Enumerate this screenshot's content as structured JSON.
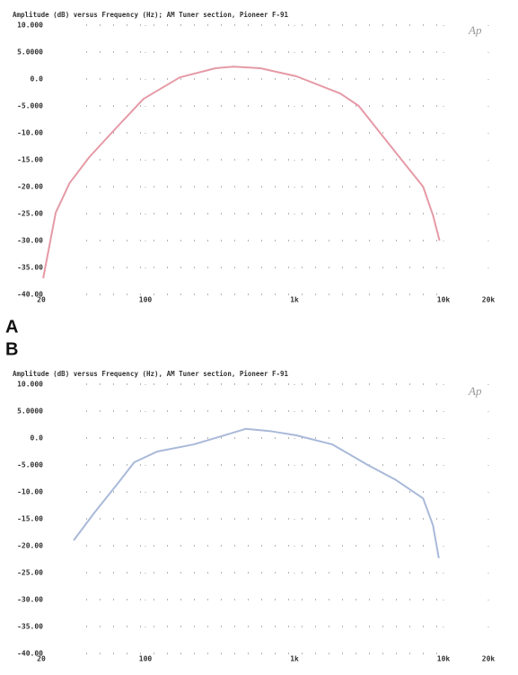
{
  "chart_data": [
    {
      "type": "line",
      "panel_label": "A",
      "logo": "Ap",
      "title": "Amplitude (dB) versus Frequency (Hz); AM Tuner section, Pioneer F-91",
      "xscale": "log",
      "grid": "dotted",
      "xlim": [
        20,
        20000
      ],
      "xticks": [
        20,
        100,
        {
          "value": 1000,
          "label": "1k"
        },
        {
          "value": 10000,
          "label": "10k"
        },
        {
          "value": 20000,
          "label": "20k"
        }
      ],
      "ylim": [
        -40,
        10
      ],
      "yticks": [
        {
          "value": 10,
          "label": "10.000"
        },
        {
          "value": 5,
          "label": "5.0000"
        },
        {
          "value": 0,
          "label": "0.0"
        },
        {
          "value": -5,
          "label": "-5.000"
        },
        {
          "value": -10,
          "label": "-10.00"
        },
        {
          "value": -15,
          "label": "-15.00"
        },
        {
          "value": -20,
          "label": "-20.00"
        },
        {
          "value": -25,
          "label": "-25.00"
        },
        {
          "value": -30,
          "label": "-30.00"
        },
        {
          "value": -35,
          "label": "-35.00"
        },
        {
          "value": -40,
          "label": "-40.00"
        }
      ],
      "x": [
        20.6,
        25,
        31,
        42,
        64,
        97,
        170,
        295,
        390,
        590,
        1030,
        2030,
        2700,
        4800,
        7300,
        8500,
        9400
      ],
      "series": [
        {
          "color": "#e59aa6",
          "values": [
            -37,
            -24.8,
            -19.3,
            -14.5,
            -9,
            -3.7,
            0.3,
            2,
            2.3,
            2,
            0.5,
            -2.7,
            -5,
            -13.7,
            -20,
            -25.3,
            -30
          ]
        }
      ]
    },
    {
      "type": "line",
      "panel_label": "B",
      "logo": "Ap",
      "title": "Amplitude (dB) versus Frequency (Hz), AM Tuner section, Pioneer F-91",
      "xscale": "log",
      "grid": "dotted",
      "xlim": [
        20,
        20000
      ],
      "xticks": [
        20,
        100,
        {
          "value": 1000,
          "label": "1k"
        },
        {
          "value": 10000,
          "label": "10k"
        },
        {
          "value": 20000,
          "label": "20k"
        }
      ],
      "ylim": [
        -40,
        10
      ],
      "yticks": [
        {
          "value": 10,
          "label": "10.000"
        },
        {
          "value": 5,
          "label": "5.0000"
        },
        {
          "value": 0,
          "label": "0.0"
        },
        {
          "value": -5,
          "label": "-5.000"
        },
        {
          "value": -10,
          "label": "-10.00"
        },
        {
          "value": -15,
          "label": "-15.00"
        },
        {
          "value": -20,
          "label": "-20.00"
        },
        {
          "value": -25,
          "label": "-25.00"
        },
        {
          "value": -30,
          "label": "-30.00"
        },
        {
          "value": -35,
          "label": "-35.00"
        },
        {
          "value": -40,
          "label": "-40.00"
        }
      ],
      "x": [
        33,
        45,
        64,
        84,
        120,
        210,
        320,
        470,
        680,
        1030,
        1800,
        3100,
        4800,
        7300,
        8500,
        9300
      ],
      "series": [
        {
          "color": "#a9b9d9",
          "values": [
            -19,
            -14,
            -8.7,
            -4.5,
            -2.5,
            -1.2,
            0.3,
            1.7,
            1.3,
            0.5,
            -1.2,
            -5,
            -7.8,
            -11.2,
            -16.2,
            -22.3
          ]
        }
      ]
    }
  ]
}
